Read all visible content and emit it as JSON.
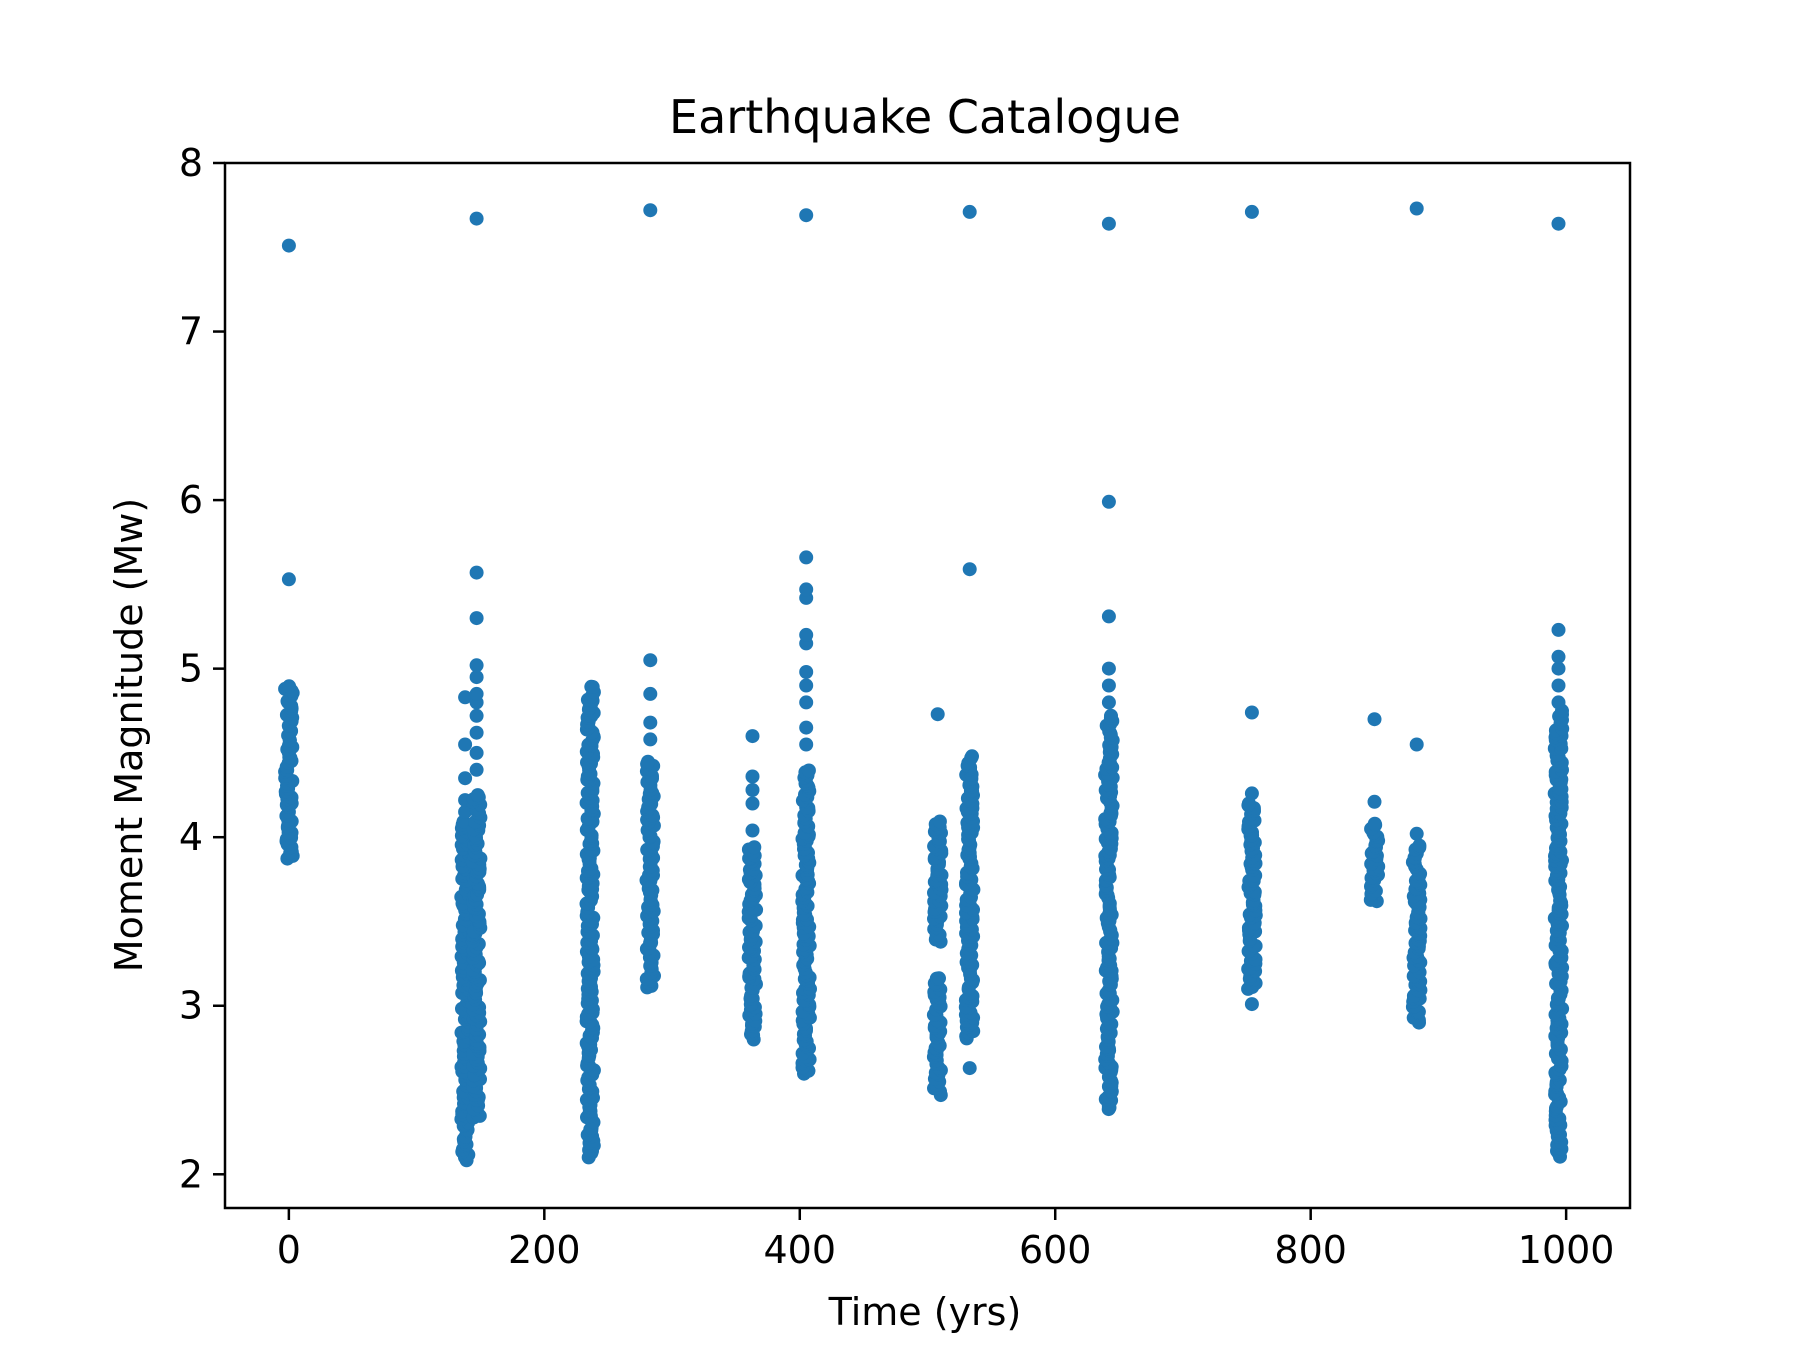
{
  "chart_data": {
    "type": "scatter",
    "title": "Earthquake Catalogue",
    "xlabel": "Time (yrs)",
    "ylabel": "Moment Magnitude (Mw)",
    "xlim": [
      -50,
      1050
    ],
    "ylim": [
      1.8,
      8.0
    ],
    "xticks": [
      0,
      200,
      400,
      600,
      800,
      1000
    ],
    "yticks": [
      2,
      3,
      4,
      5,
      6,
      7,
      8
    ],
    "grid": false,
    "color": "#1f77b4",
    "clusters": [
      {
        "x": 0,
        "min": 3.87,
        "max": 4.9,
        "outliers": [
          5.53,
          7.51
        ]
      },
      {
        "x": 138,
        "min": 2.08,
        "max": 4.1,
        "outliers": [
          4.15,
          4.22,
          4.35,
          4.55,
          4.83
        ]
      },
      {
        "x": 147,
        "min": 2.33,
        "max": 4.25,
        "outliers": [
          4.4,
          4.5,
          4.62,
          4.72,
          4.8,
          4.85,
          4.95,
          5.02,
          5.3,
          5.57,
          7.67
        ]
      },
      {
        "x": 236,
        "min": 2.1,
        "max": 4.9,
        "outliers": []
      },
      {
        "x": 283,
        "min": 3.1,
        "max": 4.45,
        "outliers": [
          4.58,
          4.68,
          4.85,
          5.05,
          7.72
        ]
      },
      {
        "x": 363,
        "min": 2.8,
        "max": 3.95,
        "outliers": [
          4.04,
          4.2,
          4.28,
          4.36,
          4.6
        ]
      },
      {
        "x": 405,
        "min": 2.59,
        "max": 4.4,
        "outliers": [
          4.55,
          4.65,
          4.8,
          4.9,
          4.98,
          5.15,
          5.2,
          5.42,
          5.47,
          5.66,
          7.69
        ]
      },
      {
        "x": 508,
        "min": 2.47,
        "max": 3.17,
        "outliers": [
          4.73
        ]
      },
      {
        "x": 508,
        "min": 3.38,
        "max": 4.1,
        "outliers": []
      },
      {
        "x": 533,
        "min": 2.8,
        "max": 4.48,
        "outliers": [
          2.63,
          5.59,
          7.71
        ]
      },
      {
        "x": 642,
        "min": 2.38,
        "max": 4.72,
        "outliers": [
          4.8,
          4.9,
          5.0,
          5.31,
          5.99,
          7.64
        ]
      },
      {
        "x": 754,
        "min": 3.1,
        "max": 4.2,
        "outliers": [
          3.01,
          4.26,
          4.74,
          7.71
        ]
      },
      {
        "x": 850,
        "min": 3.62,
        "max": 4.08,
        "outliers": [
          4.21,
          4.7
        ]
      },
      {
        "x": 883,
        "min": 2.9,
        "max": 3.95,
        "outliers": [
          4.02,
          4.55,
          7.73
        ]
      },
      {
        "x": 994,
        "min": 2.1,
        "max": 4.75,
        "outliers": [
          4.8,
          4.9,
          5.0,
          5.07,
          5.23,
          7.64
        ]
      }
    ]
  }
}
